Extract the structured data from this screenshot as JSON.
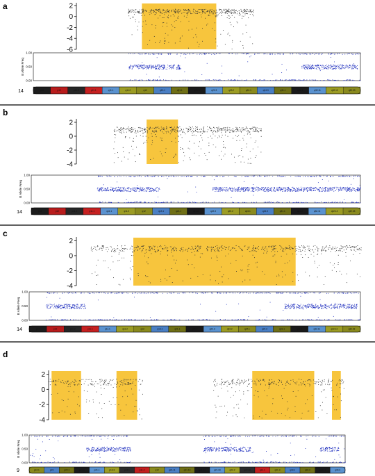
{
  "chart_data": [
    {
      "panel": "a",
      "type": "scatter",
      "chromosome": "14",
      "logr": {
        "yticks": [
          "2",
          "0",
          "-2",
          "-4",
          "-6"
        ],
        "ylim": [
          -6,
          2.5
        ],
        "highlight": [
          [
            0.37,
            0.79
          ]
        ],
        "data_start": 0.29
      },
      "baf": {
        "ylabel": "B Allele Freq",
        "yticks": [
          "1.00",
          "0.50",
          "0.00"
        ],
        "ylim": [
          0,
          1
        ],
        "hetero_segments": [
          [
            0.29,
            0.45
          ],
          [
            0.82,
            0.99
          ]
        ],
        "data_start": 0.29
      },
      "ideogram": [
        "p13",
        "p12",
        "p11.2",
        "p11.1",
        "q11.1",
        "q11.2",
        "q12",
        "q13.1",
        "q21.1",
        "q21.3",
        "q22.3",
        "q23.2",
        "q24.1",
        "q24.3",
        "q31.1",
        "q31.3",
        "q32.11",
        "q32.13",
        "q32.33"
      ]
    },
    {
      "panel": "b",
      "type": "scatter",
      "chromosome": "14",
      "logr": {
        "yticks": [
          "2",
          "0",
          "-2",
          "-4"
        ],
        "ylim": [
          -4,
          2.5
        ],
        "highlight": [
          [
            0.38,
            0.55
          ]
        ],
        "data_start": 0.2
      },
      "baf": {
        "ylabel": "B Allele Freq",
        "yticks": [
          "1.00",
          "0.50",
          "0.00"
        ],
        "ylim": [
          0,
          1
        ],
        "hetero_segments": [
          [
            0.2,
            0.39
          ],
          [
            0.55,
            1.0
          ]
        ],
        "data_start": 0.2
      },
      "ideogram": [
        "p13",
        "p12",
        "p11.2",
        "p11.1",
        "q11.1",
        "q11.2",
        "q12",
        "q13.1",
        "q21.1",
        "q21.3",
        "q22.3",
        "q23.2",
        "q24.1",
        "q24.3",
        "q31.1",
        "q31.3",
        "q32.11",
        "q32.13",
        "q32.33"
      ]
    },
    {
      "panel": "c",
      "type": "scatter",
      "chromosome": "14",
      "logr": {
        "yticks": [
          "2",
          "0",
          "-2",
          "-4"
        ],
        "ylim": [
          -4,
          2.5
        ],
        "highlight": [
          [
            0.2,
            0.77
          ]
        ],
        "data_start": 0.05
      },
      "baf": {
        "ylabel": "B Allele Freq",
        "yticks": [
          "1.00",
          "0.50",
          "0.00"
        ],
        "ylim": [
          0,
          1
        ],
        "hetero_segments": [
          [
            0.05,
            0.17
          ],
          [
            0.77,
            0.99
          ]
        ],
        "data_start": 0.05
      },
      "ideogram": [
        "p13",
        "p12",
        "p11.2",
        "p11.1",
        "q11.1",
        "q11.2",
        "q12",
        "q13.1",
        "q21.1",
        "q21.3",
        "q22.3",
        "q23.2",
        "q24.1",
        "q24.3",
        "q31.1",
        "q31.3",
        "q32.11",
        "q32.13",
        "q32.33"
      ]
    },
    {
      "panel": "d",
      "type": "scatter",
      "chromosome": "9",
      "logr": {
        "yticks": [
          "2",
          "0",
          "-2",
          "-4"
        ],
        "ylim": [
          -4,
          2.5
        ],
        "highlight": [
          [
            0.01,
            0.11
          ],
          [
            0.23,
            0.3
          ],
          [
            0.69,
            0.9
          ],
          [
            0.96,
            0.99
          ]
        ],
        "data_ranges": [
          [
            0.0,
            0.32
          ],
          [
            0.55,
            1.0
          ]
        ]
      },
      "baf": {
        "ylabel": "B Allele Freq",
        "yticks": [
          "1.00",
          "0.50",
          "0.00"
        ],
        "ylim": [
          0,
          1
        ],
        "hetero_segments": [
          [
            0.18,
            0.32
          ],
          [
            0.55,
            0.7
          ],
          [
            0.92,
            0.98
          ]
        ],
        "data_ranges": [
          [
            0.0,
            0.32
          ],
          [
            0.55,
            1.0
          ]
        ]
      },
      "ideogram": [
        "p24.1",
        "p23",
        "p22.1",
        "p21.3",
        "p21.1",
        "p13.3",
        "p13.1",
        "p11.2",
        "q12",
        "q21.11",
        "q21.13",
        "q21.31",
        "q21.33",
        "q22.2",
        "q22.32",
        "q31.1",
        "q31.3",
        "q33.1",
        "q33.3",
        "q34.13",
        "q34.3"
      ]
    }
  ],
  "colors": {
    "highlight": "#f6bb1b",
    "baf_dot": "#1f2fbe",
    "logr_dot": "#303030",
    "separator": "#000000"
  }
}
